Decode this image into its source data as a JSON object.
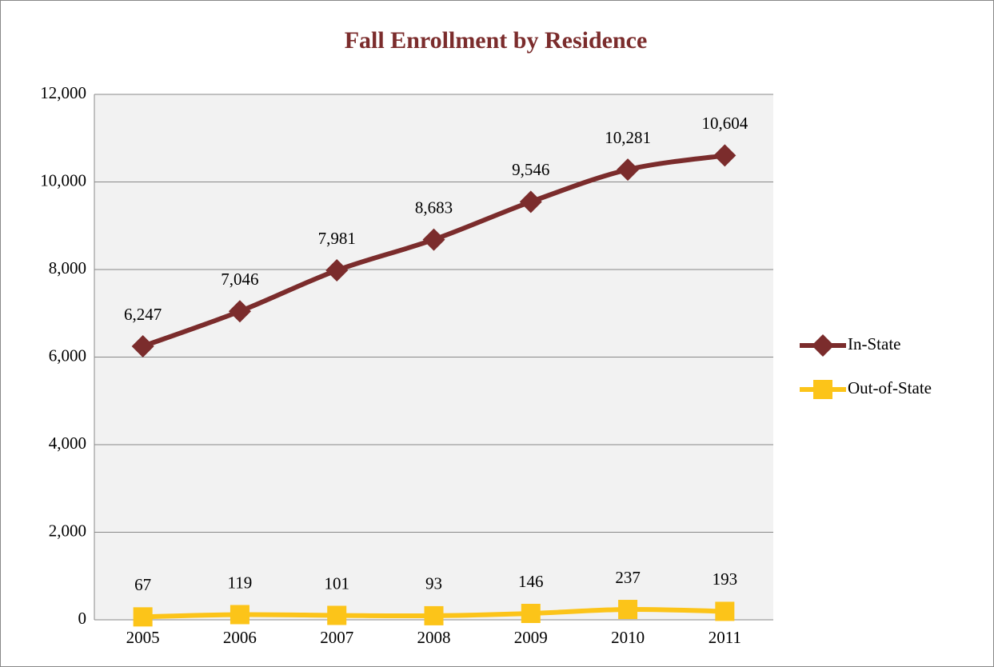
{
  "chart_data": {
    "type": "line",
    "title": "Fall Enrollment by Residence",
    "categories": [
      "2005",
      "2006",
      "2007",
      "2008",
      "2009",
      "2010",
      "2011"
    ],
    "series": [
      {
        "name": "In-State",
        "color": "#7b2c2c",
        "marker": "diamond",
        "values": [
          6247,
          7046,
          7981,
          8683,
          9546,
          10281,
          10604
        ],
        "value_labels": [
          "6,247",
          "7,046",
          "7,981",
          "8,683",
          "9,546",
          "10,281",
          "10,604"
        ]
      },
      {
        "name": "Out-of-State",
        "color": "#fcc419",
        "marker": "square",
        "values": [
          67,
          119,
          101,
          93,
          146,
          237,
          193
        ]
      }
    ],
    "ylim": [
      0,
      12000
    ],
    "yticks": [
      0,
      {
        "value": 2000,
        "label": "2,000"
      },
      {
        "value": 4000,
        "label": "4,000"
      },
      {
        "value": 6000,
        "label": "6,000"
      },
      {
        "value": 8000,
        "label": "8,000"
      },
      {
        "value": 10000,
        "label": "10,000"
      },
      {
        "value": 12000,
        "label": "12,000"
      }
    ],
    "grid": true,
    "legend": "right"
  }
}
